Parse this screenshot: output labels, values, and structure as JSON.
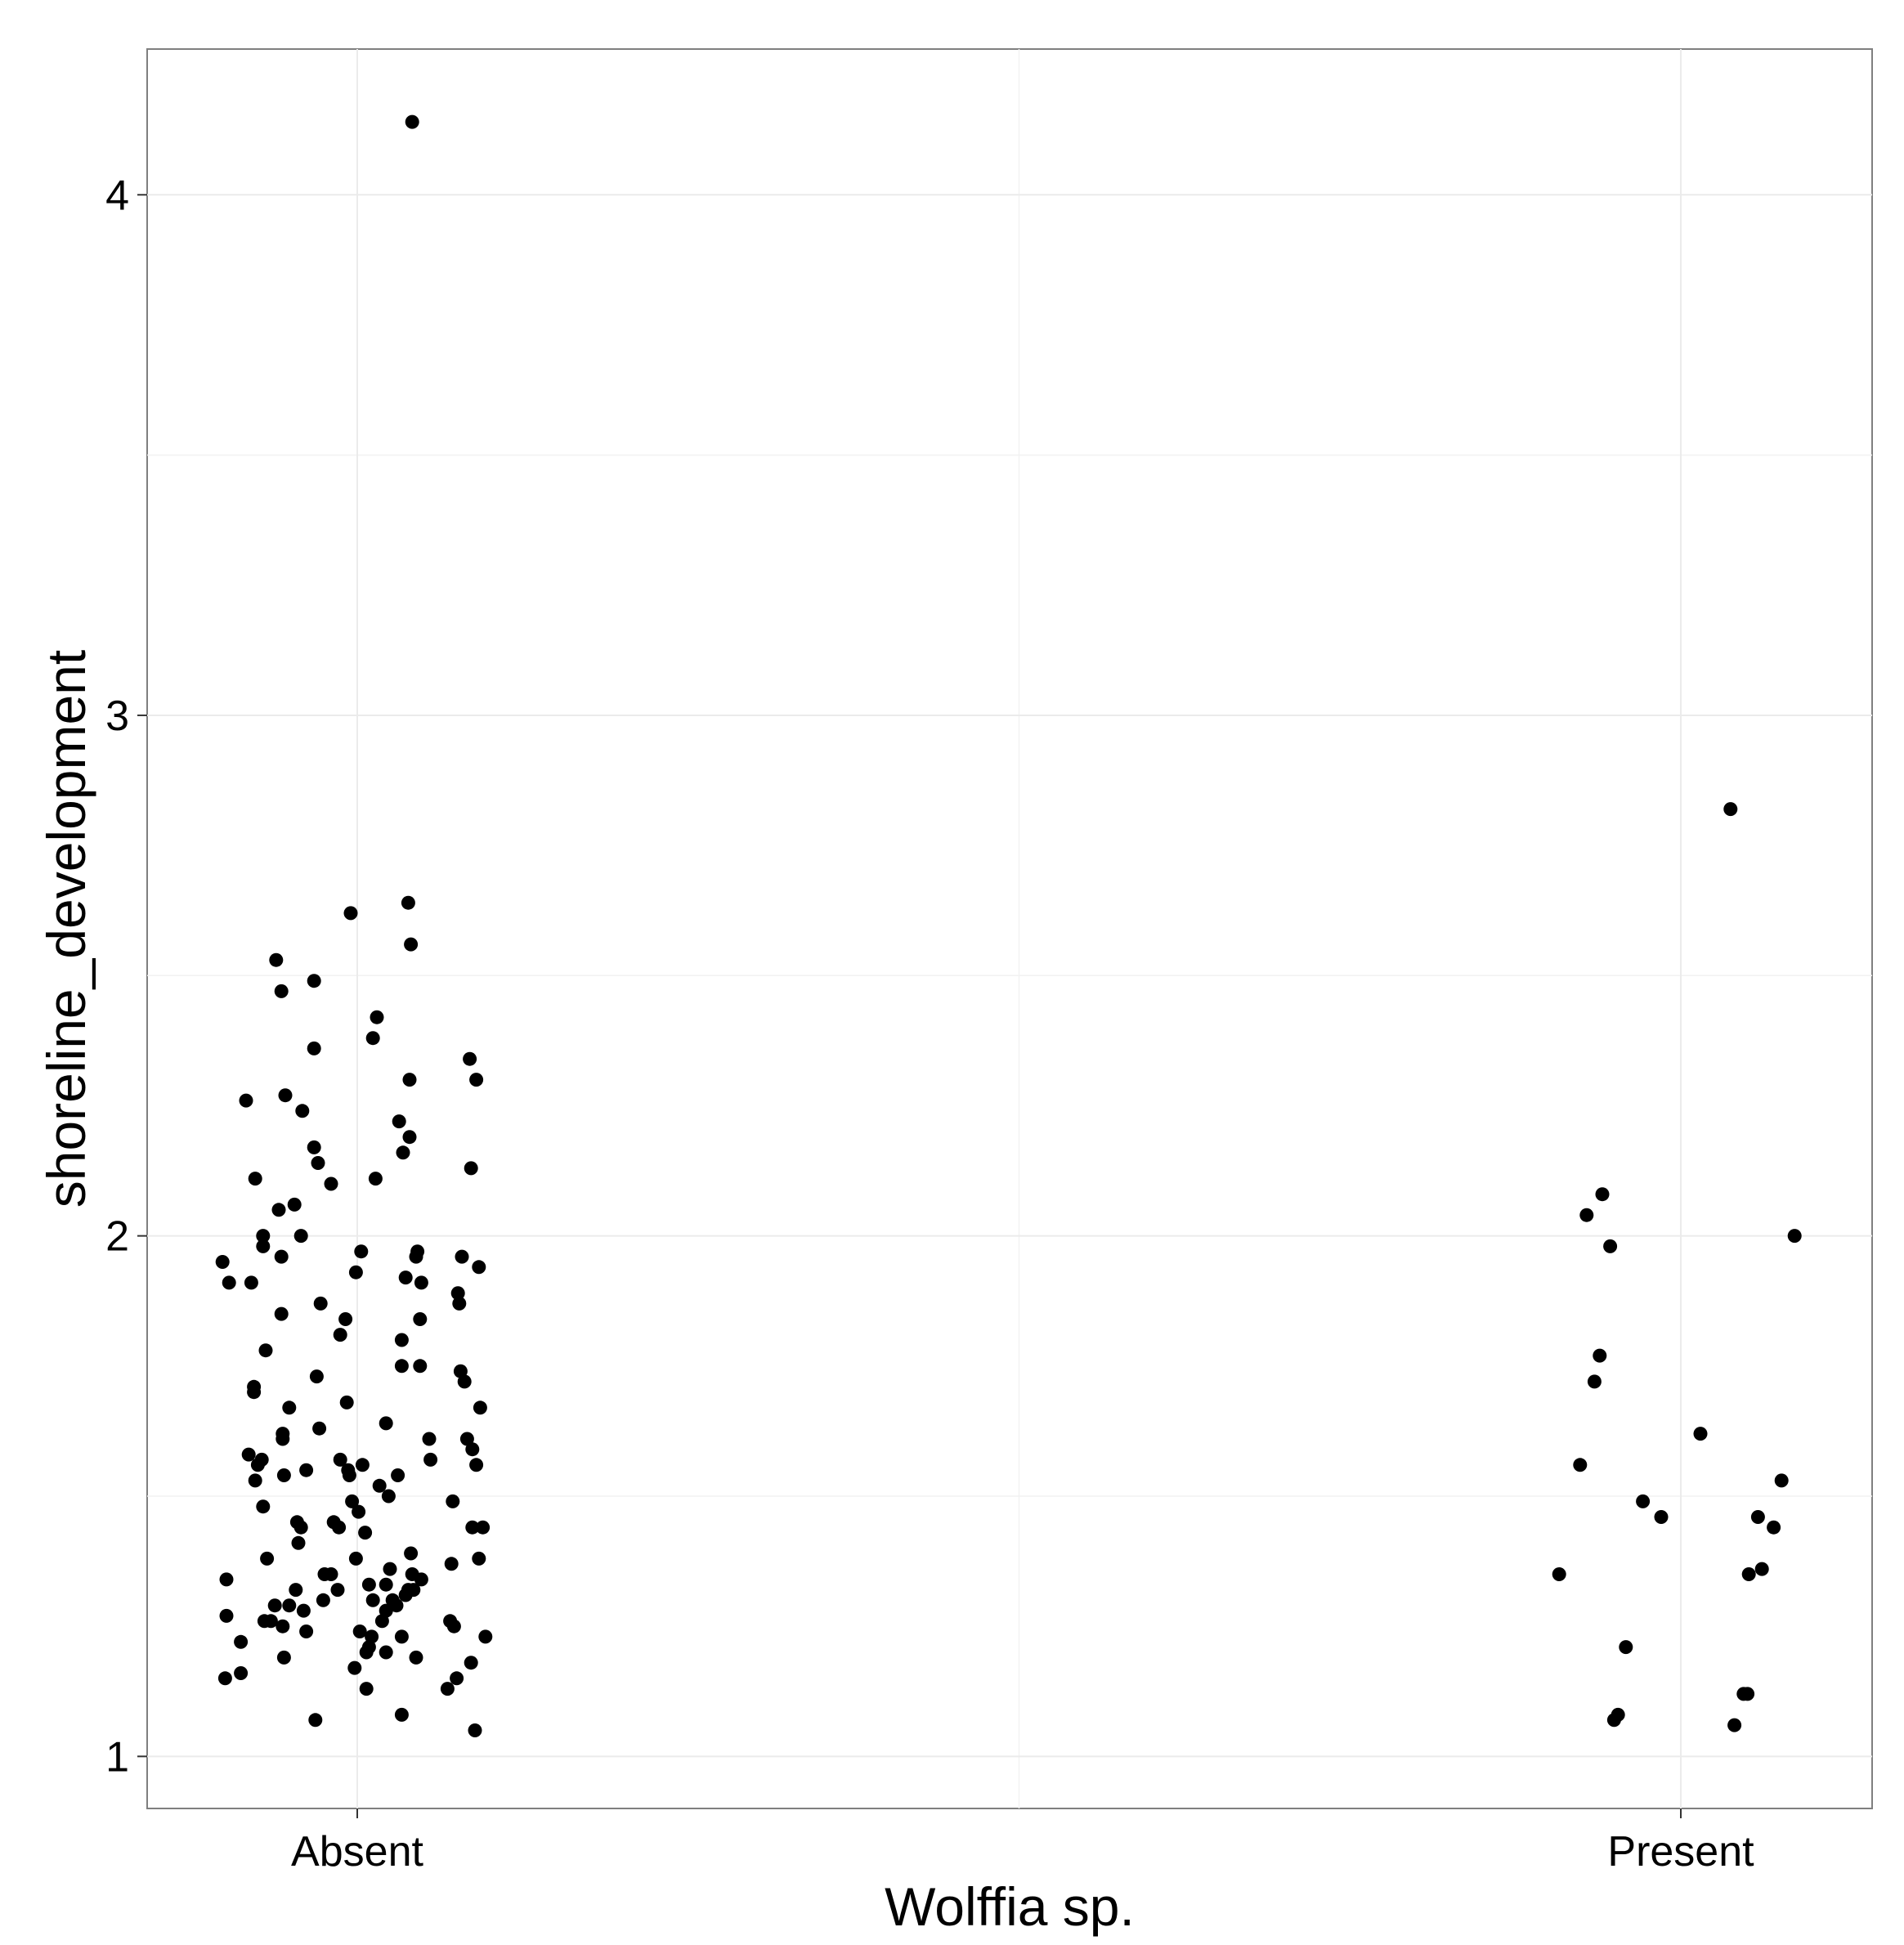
{
  "chart_data": {
    "type": "scatter",
    "xlabel": "Wolffia sp.",
    "ylabel": "shoreline_development",
    "categories": [
      "Absent",
      "Present"
    ],
    "ylim": [
      0.9,
      4.28
    ],
    "yticks": [
      1,
      2,
      3,
      4
    ],
    "grid": true,
    "legend": "none",
    "point_color": "#000000",
    "series": [
      {
        "category": "Absent",
        "points": [
          {
            "dx": 0.42,
            "y": 4.14
          },
          {
            "dx": 0.39,
            "y": 2.64
          },
          {
            "dx": -0.05,
            "y": 2.62
          },
          {
            "dx": 0.41,
            "y": 2.56
          },
          {
            "dx": -0.62,
            "y": 2.53
          },
          {
            "dx": -0.33,
            "y": 2.49
          },
          {
            "dx": -0.58,
            "y": 2.47
          },
          {
            "dx": 0.12,
            "y": 2.38
          },
          {
            "dx": 0.15,
            "y": 2.42
          },
          {
            "dx": -0.33,
            "y": 2.36
          },
          {
            "dx": 0.86,
            "y": 2.34
          },
          {
            "dx": 0.91,
            "y": 2.3
          },
          {
            "dx": 0.4,
            "y": 2.3
          },
          {
            "dx": -0.55,
            "y": 2.27
          },
          {
            "dx": -0.85,
            "y": 2.26
          },
          {
            "dx": -0.42,
            "y": 2.24
          },
          {
            "dx": 0.32,
            "y": 2.22
          },
          {
            "dx": 0.4,
            "y": 2.19
          },
          {
            "dx": -0.33,
            "y": 2.17
          },
          {
            "dx": 0.35,
            "y": 2.16
          },
          {
            "dx": -0.3,
            "y": 2.14
          },
          {
            "dx": 0.87,
            "y": 2.13
          },
          {
            "dx": -0.78,
            "y": 2.11
          },
          {
            "dx": 0.14,
            "y": 2.11
          },
          {
            "dx": -0.2,
            "y": 2.1
          },
          {
            "dx": -0.48,
            "y": 2.06
          },
          {
            "dx": -0.6,
            "y": 2.05
          },
          {
            "dx": -0.72,
            "y": 2.0
          },
          {
            "dx": -0.43,
            "y": 2.0
          },
          {
            "dx": -0.72,
            "y": 1.98
          },
          {
            "dx": 0.46,
            "y": 1.97
          },
          {
            "dx": 0.03,
            "y": 1.97
          },
          {
            "dx": 0.45,
            "y": 1.96
          },
          {
            "dx": 0.8,
            "y": 1.96
          },
          {
            "dx": -0.58,
            "y": 1.96
          },
          {
            "dx": -1.03,
            "y": 1.95
          },
          {
            "dx": 0.93,
            "y": 1.94
          },
          {
            "dx": -0.01,
            "y": 1.93
          },
          {
            "dx": 0.37,
            "y": 1.92
          },
          {
            "dx": -0.98,
            "y": 1.91
          },
          {
            "dx": 0.49,
            "y": 1.91
          },
          {
            "dx": -0.81,
            "y": 1.91
          },
          {
            "dx": 0.77,
            "y": 1.89
          },
          {
            "dx": -0.28,
            "y": 1.87
          },
          {
            "dx": 0.78,
            "y": 1.87
          },
          {
            "dx": -0.58,
            "y": 1.85
          },
          {
            "dx": -0.09,
            "y": 1.84
          },
          {
            "dx": 0.48,
            "y": 1.84
          },
          {
            "dx": -0.13,
            "y": 1.81
          },
          {
            "dx": 0.34,
            "y": 1.8
          },
          {
            "dx": -0.7,
            "y": 1.78
          },
          {
            "dx": 0.34,
            "y": 1.75
          },
          {
            "dx": 0.48,
            "y": 1.75
          },
          {
            "dx": 0.79,
            "y": 1.74
          },
          {
            "dx": 0.82,
            "y": 1.72
          },
          {
            "dx": -0.31,
            "y": 1.73
          },
          {
            "dx": -0.79,
            "y": 1.71
          },
          {
            "dx": -0.79,
            "y": 1.7
          },
          {
            "dx": -0.08,
            "y": 1.68
          },
          {
            "dx": 0.94,
            "y": 1.67
          },
          {
            "dx": -0.52,
            "y": 1.67
          },
          {
            "dx": 0.22,
            "y": 1.64
          },
          {
            "dx": -0.29,
            "y": 1.63
          },
          {
            "dx": -0.57,
            "y": 1.62
          },
          {
            "dx": -0.57,
            "y": 1.61
          },
          {
            "dx": 0.84,
            "y": 1.61
          },
          {
            "dx": 0.55,
            "y": 1.61
          },
          {
            "dx": -0.83,
            "y": 1.58
          },
          {
            "dx": 0.88,
            "y": 1.59
          },
          {
            "dx": -0.73,
            "y": 1.57
          },
          {
            "dx": -0.76,
            "y": 1.56
          },
          {
            "dx": -0.13,
            "y": 1.57
          },
          {
            "dx": 0.56,
            "y": 1.57
          },
          {
            "dx": 0.04,
            "y": 1.56
          },
          {
            "dx": -0.07,
            "y": 1.55
          },
          {
            "dx": 0.91,
            "y": 1.56
          },
          {
            "dx": -0.39,
            "y": 1.55
          },
          {
            "dx": -0.56,
            "y": 1.54
          },
          {
            "dx": 0.31,
            "y": 1.54
          },
          {
            "dx": -0.06,
            "y": 1.54
          },
          {
            "dx": -0.78,
            "y": 1.53
          },
          {
            "dx": 0.17,
            "y": 1.52
          },
          {
            "dx": 0.24,
            "y": 1.5
          },
          {
            "dx": -0.04,
            "y": 1.49
          },
          {
            "dx": 0.73,
            "y": 1.49
          },
          {
            "dx": -0.72,
            "y": 1.48
          },
          {
            "dx": 0.01,
            "y": 1.47
          },
          {
            "dx": -0.46,
            "y": 1.45
          },
          {
            "dx": -0.43,
            "y": 1.44
          },
          {
            "dx": -0.18,
            "y": 1.45
          },
          {
            "dx": -0.14,
            "y": 1.44
          },
          {
            "dx": 0.88,
            "y": 1.44
          },
          {
            "dx": 0.96,
            "y": 1.44
          },
          {
            "dx": 0.06,
            "y": 1.43
          },
          {
            "dx": -0.45,
            "y": 1.41
          },
          {
            "dx": 0.41,
            "y": 1.39
          },
          {
            "dx": -0.69,
            "y": 1.38
          },
          {
            "dx": -0.01,
            "y": 1.38
          },
          {
            "dx": 0.93,
            "y": 1.38
          },
          {
            "dx": 0.72,
            "y": 1.37
          },
          {
            "dx": 0.25,
            "y": 1.36
          },
          {
            "dx": -0.25,
            "y": 1.35
          },
          {
            "dx": -0.2,
            "y": 1.35
          },
          {
            "dx": 0.42,
            "y": 1.35
          },
          {
            "dx": -1.0,
            "y": 1.34
          },
          {
            "dx": 0.49,
            "y": 1.34
          },
          {
            "dx": 0.09,
            "y": 1.33
          },
          {
            "dx": 0.22,
            "y": 1.33
          },
          {
            "dx": 0.43,
            "y": 1.32
          },
          {
            "dx": -0.47,
            "y": 1.32
          },
          {
            "dx": -0.15,
            "y": 1.32
          },
          {
            "dx": 0.39,
            "y": 1.32
          },
          {
            "dx": 0.37,
            "y": 1.31
          },
          {
            "dx": 0.27,
            "y": 1.3
          },
          {
            "dx": -0.26,
            "y": 1.3
          },
          {
            "dx": 0.12,
            "y": 1.3
          },
          {
            "dx": 0.3,
            "y": 1.29
          },
          {
            "dx": -0.63,
            "y": 1.29
          },
          {
            "dx": -0.52,
            "y": 1.29
          },
          {
            "dx": -0.41,
            "y": 1.28
          },
          {
            "dx": 0.22,
            "y": 1.28
          },
          {
            "dx": -1.0,
            "y": 1.27
          },
          {
            "dx": -0.66,
            "y": 1.26
          },
          {
            "dx": -0.71,
            "y": 1.26
          },
          {
            "dx": 0.71,
            "y": 1.26
          },
          {
            "dx": 0.19,
            "y": 1.26
          },
          {
            "dx": -0.57,
            "y": 1.25
          },
          {
            "dx": 0.74,
            "y": 1.25
          },
          {
            "dx": -0.39,
            "y": 1.24
          },
          {
            "dx": 0.02,
            "y": 1.24
          },
          {
            "dx": 0.11,
            "y": 1.23
          },
          {
            "dx": 0.34,
            "y": 1.23
          },
          {
            "dx": 0.98,
            "y": 1.23
          },
          {
            "dx": -0.89,
            "y": 1.22
          },
          {
            "dx": 0.09,
            "y": 1.21
          },
          {
            "dx": 0.07,
            "y": 1.2
          },
          {
            "dx": 0.22,
            "y": 1.2
          },
          {
            "dx": -0.56,
            "y": 1.19
          },
          {
            "dx": 0.45,
            "y": 1.19
          },
          {
            "dx": 0.87,
            "y": 1.18
          },
          {
            "dx": -0.89,
            "y": 1.16
          },
          {
            "dx": -0.02,
            "y": 1.17
          },
          {
            "dx": -1.01,
            "y": 1.15
          },
          {
            "dx": 0.76,
            "y": 1.15
          },
          {
            "dx": 0.69,
            "y": 1.13
          },
          {
            "dx": 0.07,
            "y": 1.13
          },
          {
            "dx": -0.32,
            "y": 1.07
          },
          {
            "dx": 0.34,
            "y": 1.08
          },
          {
            "dx": 0.9,
            "y": 1.05
          }
        ]
      },
      {
        "category": "Present",
        "points": [
          {
            "dx": 0.38,
            "y": 2.82
          },
          {
            "dx": -0.6,
            "y": 2.08
          },
          {
            "dx": -0.72,
            "y": 2.04
          },
          {
            "dx": 0.87,
            "y": 2.0
          },
          {
            "dx": -0.54,
            "y": 1.98
          },
          {
            "dx": -0.62,
            "y": 1.77
          },
          {
            "dx": -0.66,
            "y": 1.72
          },
          {
            "dx": 0.15,
            "y": 1.62
          },
          {
            "dx": -0.77,
            "y": 1.56
          },
          {
            "dx": 0.77,
            "y": 1.53
          },
          {
            "dx": -0.29,
            "y": 1.49
          },
          {
            "dx": 0.59,
            "y": 1.46
          },
          {
            "dx": -0.15,
            "y": 1.46
          },
          {
            "dx": 0.71,
            "y": 1.44
          },
          {
            "dx": 0.62,
            "y": 1.36
          },
          {
            "dx": -0.93,
            "y": 1.35
          },
          {
            "dx": 0.52,
            "y": 1.35
          },
          {
            "dx": -0.42,
            "y": 1.21
          },
          {
            "dx": 0.51,
            "y": 1.12
          },
          {
            "dx": 0.48,
            "y": 1.12
          },
          {
            "dx": -0.48,
            "y": 1.08
          },
          {
            "dx": -0.51,
            "y": 1.07
          },
          {
            "dx": 0.41,
            "y": 1.06
          }
        ]
      }
    ]
  }
}
